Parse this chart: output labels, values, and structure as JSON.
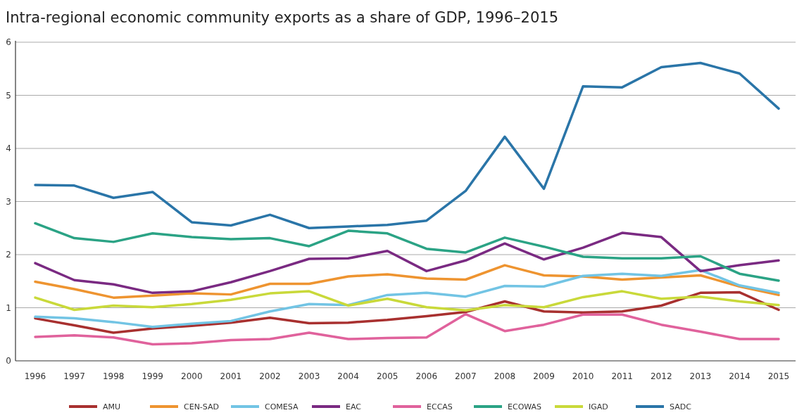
{
  "chart_data": {
    "type": "line",
    "title": "Intra-regional economic community exports as a share of GDP, 1996–2015",
    "categories": [
      "1996",
      "1997",
      "1998",
      "1999",
      "2000",
      "2001",
      "2002",
      "2003",
      "2004",
      "2005",
      "2006",
      "2007",
      "2008",
      "2009",
      "2010",
      "2011",
      "2012",
      "2013",
      "2014",
      "2015"
    ],
    "series": [
      {
        "name": "AMU",
        "color": "#a8302f",
        "values": [
          0.8,
          0.67,
          0.53,
          0.61,
          0.66,
          0.72,
          0.81,
          0.71,
          0.72,
          0.77,
          0.84,
          0.92,
          1.12,
          0.93,
          0.91,
          0.93,
          1.04,
          1.28,
          1.29,
          0.96
        ]
      },
      {
        "name": "CEN-SAD",
        "color": "#ee9430",
        "values": [
          1.49,
          1.35,
          1.19,
          1.23,
          1.27,
          1.25,
          1.45,
          1.45,
          1.59,
          1.63,
          1.55,
          1.53,
          1.8,
          1.61,
          1.59,
          1.53,
          1.57,
          1.61,
          1.4,
          1.24
        ]
      },
      {
        "name": "COMESA",
        "color": "#72c4e4",
        "values": [
          0.83,
          0.8,
          0.73,
          0.64,
          0.7,
          0.75,
          0.93,
          1.07,
          1.05,
          1.24,
          1.28,
          1.21,
          1.41,
          1.4,
          1.6,
          1.64,
          1.6,
          1.71,
          1.42,
          1.28
        ]
      },
      {
        "name": "EAC",
        "color": "#7a2a82",
        "values": [
          1.84,
          1.52,
          1.44,
          1.28,
          1.31,
          1.48,
          1.69,
          1.92,
          1.93,
          2.07,
          1.69,
          1.89,
          2.21,
          1.91,
          2.13,
          2.41,
          2.33,
          1.69,
          1.8,
          1.89
        ]
      },
      {
        "name": "ECCAS",
        "color": "#e0629c",
        "values": [
          0.45,
          0.48,
          0.44,
          0.31,
          0.33,
          0.39,
          0.41,
          0.53,
          0.41,
          0.43,
          0.44,
          0.88,
          0.56,
          0.68,
          0.87,
          0.87,
          0.68,
          0.55,
          0.41,
          0.41
        ]
      },
      {
        "name": "ECOWAS",
        "color": "#2ba385",
        "values": [
          2.59,
          2.31,
          2.24,
          2.4,
          2.33,
          2.29,
          2.31,
          2.16,
          2.45,
          2.4,
          2.11,
          2.04,
          2.32,
          2.15,
          1.96,
          1.93,
          1.93,
          1.97,
          1.64,
          1.51
        ]
      },
      {
        "name": "IGAD",
        "color": "#c9d93a",
        "values": [
          1.19,
          0.96,
          1.04,
          1.01,
          1.07,
          1.15,
          1.27,
          1.31,
          1.04,
          1.17,
          1.01,
          0.95,
          1.05,
          1.01,
          1.2,
          1.31,
          1.17,
          1.21,
          1.12,
          1.05
        ]
      },
      {
        "name": "SADC",
        "color": "#2a75a8",
        "values": [
          3.31,
          3.3,
          3.07,
          3.18,
          2.61,
          2.55,
          2.75,
          2.5,
          2.53,
          2.56,
          2.64,
          3.2,
          4.22,
          3.24,
          5.17,
          5.15,
          5.53,
          5.61,
          5.41,
          4.75
        ]
      }
    ],
    "ylim": [
      0,
      6
    ],
    "yticks": [
      0,
      1,
      2,
      3,
      4,
      5,
      6
    ],
    "grid": "y",
    "legend": "bottom",
    "line_style": "solid",
    "marker": "none"
  }
}
